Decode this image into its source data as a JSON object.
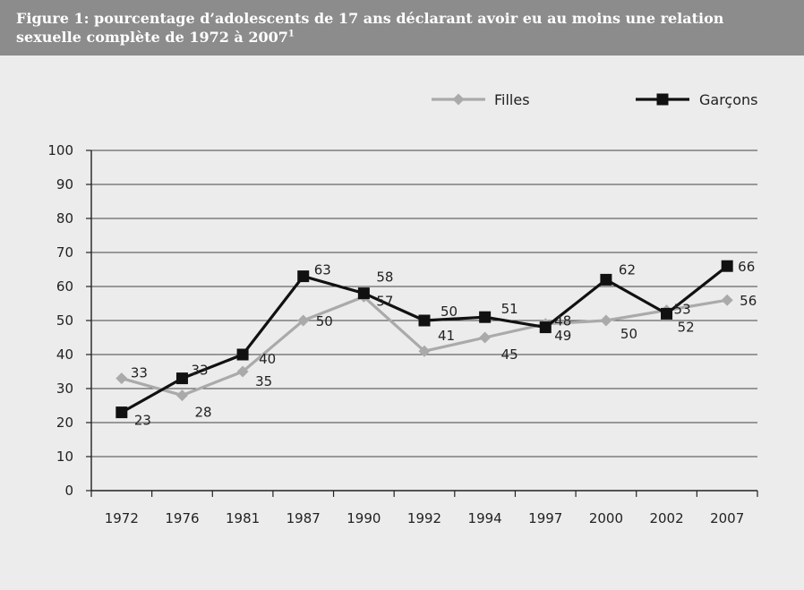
{
  "figure": {
    "title": "Figure 1: pourcentage d’adolescents de 17 ans déclarant avoir eu au moins une relation sexuelle complète de 1972 à 2007",
    "title_note": "1"
  },
  "colors": {
    "header_bg": "#8c8c8c",
    "page_bg": "#ececec",
    "filles": "#aaaaaa",
    "garcons": "#111111"
  },
  "chart_data": {
    "type": "line",
    "title": "Figure 1: pourcentage d’adolescents de 17 ans déclarant avoir eu au moins une relation sexuelle complète de 1972 à 2007",
    "xlabel": "",
    "ylabel": "",
    "categories": [
      "1972",
      "1976",
      "1981",
      "1987",
      "1990",
      "1992",
      "1994",
      "1997",
      "2000",
      "2002",
      "2007"
    ],
    "ylim": [
      0,
      100
    ],
    "yticks": [
      0,
      10,
      20,
      30,
      40,
      50,
      60,
      70,
      80,
      90,
      100
    ],
    "grid": true,
    "legend": "top-right",
    "series": [
      {
        "name": "Filles",
        "marker": "diamond",
        "values": [
          33,
          28,
          35,
          50,
          57,
          41,
          45,
          49,
          50,
          53,
          56
        ],
        "labels": [
          "33",
          "28",
          "35",
          "50",
          "57",
          "41",
          "45",
          "49",
          "50",
          "53",
          "56"
        ]
      },
      {
        "name": "Garçons",
        "marker": "square",
        "values": [
          23,
          33,
          40,
          63,
          58,
          50,
          51,
          48,
          62,
          52,
          66
        ],
        "labels": [
          "23",
          "33",
          "40",
          "63",
          "58",
          "50",
          "51",
          "48",
          "62",
          "52",
          "66"
        ]
      }
    ]
  }
}
